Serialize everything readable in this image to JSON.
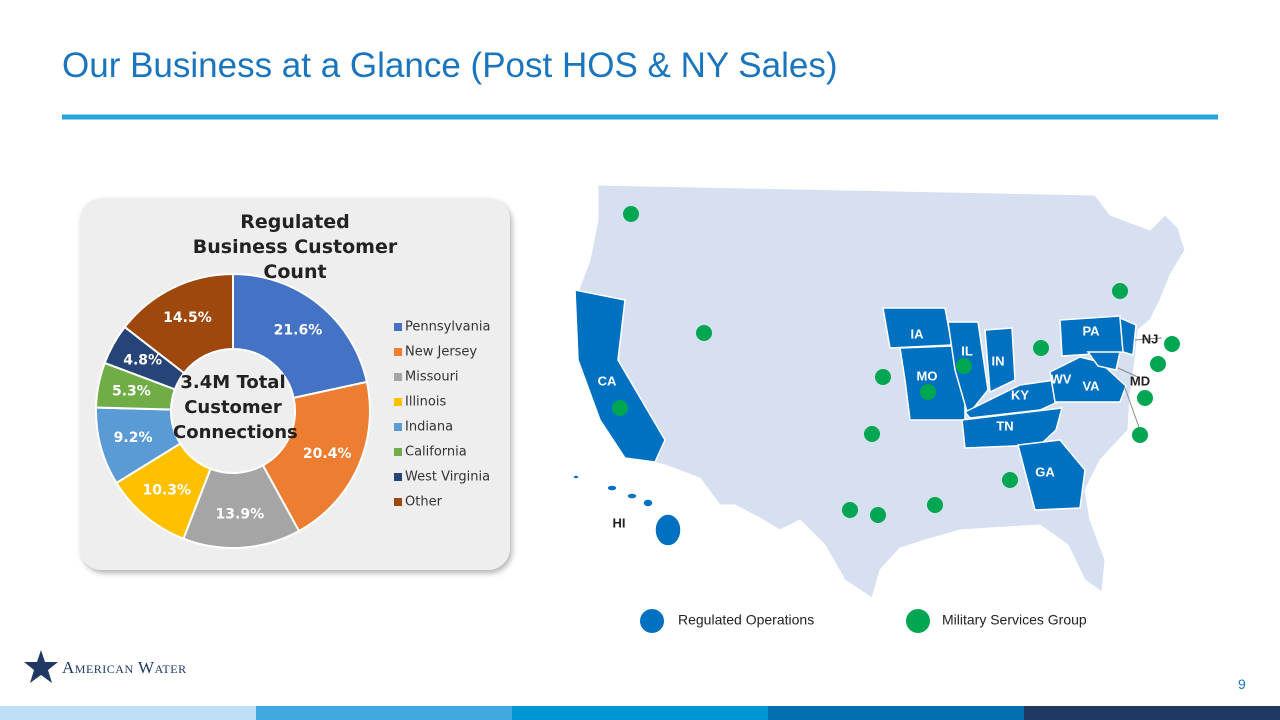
{
  "title": "Our Business at a Glance (Post HOS & NY Sales)",
  "chart_data": {
    "type": "donut",
    "title": "Regulated Business Customer Count",
    "center_label": "3.4M Total Customer Connections",
    "categories": [
      "Pennsylvania",
      "New Jersey",
      "Missouri",
      "Illinois",
      "Indiana",
      "California",
      "West Virginia",
      "Other"
    ],
    "values": [
      21.6,
      20.4,
      13.9,
      10.3,
      9.2,
      5.3,
      4.8,
      14.5
    ],
    "value_labels": [
      "21.6%",
      "20.4%",
      "13.9%",
      "10.3%",
      "9.2%",
      "5.3%",
      "4.8%",
      "14.5%"
    ],
    "colors": [
      "#4472c4",
      "#ed7d31",
      "#a5a5a5",
      "#ffc000",
      "#5b9bd5",
      "#70ad47",
      "#264478",
      "#9e480e"
    ]
  },
  "map": {
    "state_labels": [
      "CA",
      "IA",
      "IL",
      "IN",
      "MO",
      "PA",
      "NJ",
      "WV",
      "KY",
      "VA",
      "MD",
      "TN",
      "GA",
      "HI"
    ],
    "legend": [
      "Regulated Operations",
      "Military Services Group"
    ]
  },
  "logo": "American Water",
  "page_number": "9"
}
